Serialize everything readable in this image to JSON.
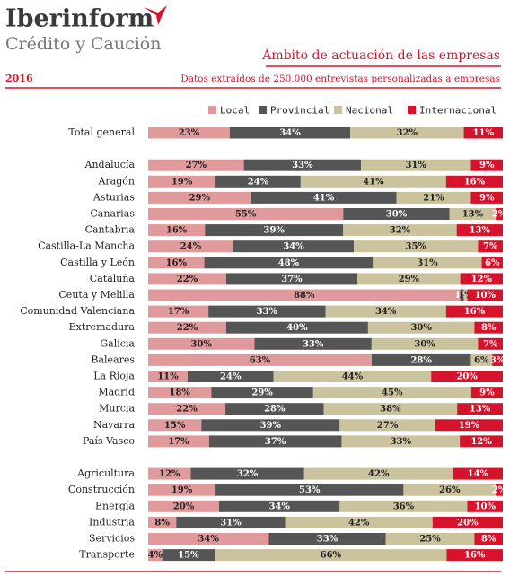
{
  "header": {
    "brand": "Iberinform",
    "brand_sub": "Crédito y Caución"
  },
  "chart_data": {
    "type": "stacked-bar-horizontal-100",
    "title": "Ámbito de actuación de las empresas",
    "year": "2016",
    "subtitle": "Datos extraídos de 250.000 entrevistas personalizadas a empresas",
    "categories": [
      "Total general",
      null,
      "Andalucía",
      "Aragón",
      "Asturias",
      "Canarias",
      "Cantabria",
      "Castilla-La Mancha",
      "Castilla y León",
      "Cataluña",
      "Ceuta y Melilla",
      "Comunidad Valenciana",
      "Extremadura",
      "Galicia",
      "Baleares",
      "La Rioja",
      "Madrid",
      "Murcia",
      "Navarra",
      "País Vasco",
      null,
      "Agricultura",
      "Construcción",
      "Energía",
      "Industria",
      "Servicios",
      "Transporte"
    ],
    "series": [
      {
        "name": "Local",
        "color": "#e19a9b",
        "values": [
          23,
          null,
          27,
          19,
          29,
          55,
          16,
          24,
          16,
          22,
          88,
          17,
          22,
          30,
          63,
          11,
          18,
          22,
          15,
          17,
          null,
          12,
          19,
          20,
          8,
          34,
          4
        ],
        "value_labels": [
          "23%",
          null,
          "27%",
          "19%",
          "29%",
          "55%",
          "16%",
          "24%",
          "16%",
          "22%",
          "88%",
          "17%",
          "22%",
          "30%",
          "63%",
          "11%",
          "18%",
          "22%",
          "15%",
          "17%",
          null,
          "12%",
          "19%",
          "20%",
          "8%",
          "34%",
          "4%"
        ]
      },
      {
        "name": "Provincial",
        "color": "#555555",
        "values": [
          34,
          null,
          33,
          24,
          41,
          30,
          39,
          34,
          48,
          37,
          1,
          33,
          40,
          33,
          28,
          24,
          29,
          28,
          39,
          37,
          null,
          32,
          53,
          34,
          31,
          33,
          15
        ],
        "value_labels": [
          "34%",
          null,
          "33%",
          "24%",
          "41%",
          "30%",
          "39%",
          "34%",
          "48%",
          "37%",
          "1%",
          "33%",
          "40%",
          "33%",
          "28%",
          "24%",
          "29%",
          "28%",
          "39%",
          "37%",
          null,
          "32%",
          "53%",
          "34%",
          "31%",
          "33%",
          "15%"
        ]
      },
      {
        "name": "Nacional",
        "color": "#cbc39d",
        "values": [
          32,
          null,
          31,
          41,
          21,
          13,
          32,
          35,
          31,
          29,
          1,
          34,
          30,
          30,
          6,
          44,
          45,
          38,
          27,
          33,
          null,
          42,
          26,
          36,
          42,
          25,
          66
        ],
        "value_labels": [
          "32%",
          null,
          "31%",
          "41%",
          "21%",
          "13%",
          "32%",
          "35%",
          "31%",
          "29%",
          "1%",
          "34%",
          "30%",
          "30%",
          "6%",
          "44%",
          "45%",
          "38%",
          "27%",
          "33%",
          null,
          "42%",
          "26%",
          "36%",
          "42%",
          "25%",
          "66%"
        ]
      },
      {
        "name": "Internacional",
        "color": "#d5132c",
        "values": [
          11,
          null,
          9,
          16,
          9,
          2,
          13,
          7,
          6,
          12,
          10,
          16,
          8,
          7,
          3,
          20,
          9,
          13,
          19,
          12,
          null,
          14,
          2,
          10,
          20,
          8,
          16
        ],
        "value_labels": [
          "11%",
          null,
          "9%",
          "16%",
          "9%",
          "2%",
          "13%",
          "7%",
          "6%",
          "12%",
          "10%",
          "16%",
          "8%",
          "7%",
          "3%",
          "20%",
          "9%",
          "13%",
          "19%",
          "12%",
          null,
          "14%",
          "2%",
          "10%",
          "20%",
          "8%",
          "16%"
        ]
      }
    ]
  }
}
